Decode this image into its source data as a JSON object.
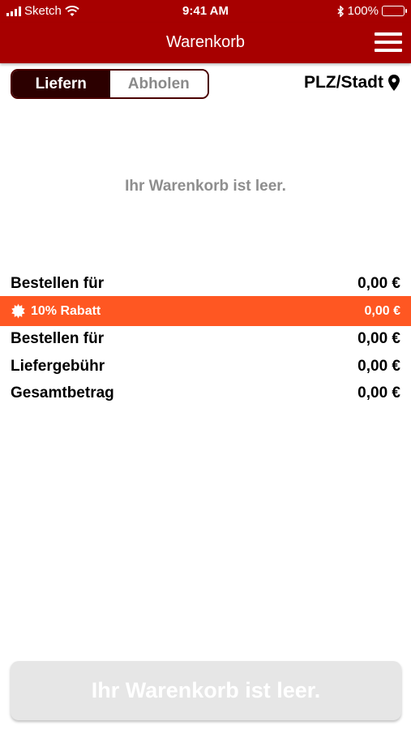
{
  "status_bar": {
    "carrier": "Sketch",
    "time": "9:41 AM",
    "battery": "100%",
    "icons": [
      "signal-icon",
      "wifi-icon",
      "bluetooth-icon",
      "battery-icon"
    ]
  },
  "header": {
    "title": "Warenkorb",
    "menu_icon": "hamburger-menu-icon",
    "background_color": "#a70000"
  },
  "delivery_toggle": {
    "options": [
      {
        "label": "Liefern",
        "selected": true
      },
      {
        "label": "Abholen",
        "selected": false
      }
    ]
  },
  "location": {
    "label": "PLZ/Stadt",
    "icon": "map-pin-icon"
  },
  "cart": {
    "empty_message": "Ihr Warenkorb ist leer."
  },
  "summary": {
    "rows": [
      {
        "label": "Bestellen für",
        "value": "0,00 €"
      },
      {
        "label": "10% Rabatt",
        "value": "0,00 €",
        "highlight": true,
        "icon": "discount-badge-icon",
        "color": "#ff5722"
      },
      {
        "label": "Bestellen für",
        "value": "0,00 €"
      },
      {
        "label": "Liefergebühr",
        "value": "0,00 €"
      },
      {
        "label": "Gesamtbetrag",
        "value": "0,00 €"
      }
    ]
  },
  "checkout_button": {
    "label": "Ihr Warenkorb ist leer.",
    "disabled": true
  }
}
